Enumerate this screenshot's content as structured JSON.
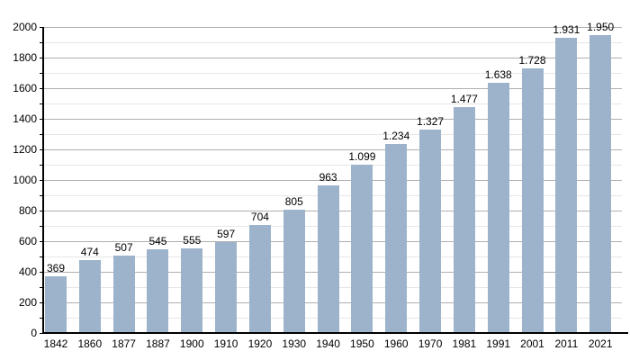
{
  "chart_data": {
    "type": "bar",
    "title": "",
    "xlabel": "",
    "ylabel": "",
    "categories": [
      "1842",
      "1860",
      "1877",
      "1887",
      "1900",
      "1910",
      "1920",
      "1930",
      "1940",
      "1950",
      "1960",
      "1970",
      "1981",
      "1991",
      "2001",
      "2011",
      "2021"
    ],
    "values": [
      369,
      474,
      507,
      545,
      555,
      597,
      704,
      805,
      963,
      1099,
      1234,
      1327,
      1477,
      1638,
      1728,
      1931,
      1950
    ],
    "value_labels": [
      "369",
      "474",
      "507",
      "545",
      "555",
      "597",
      "704",
      "805",
      "963",
      "1.099",
      "1.234",
      "1.327",
      "1.477",
      "1.638",
      "1.728",
      "1.931",
      "1.950"
    ],
    "ylim": [
      0,
      2000
    ],
    "y_major_step": 200,
    "y_minor_step": 100,
    "y_tick_labels": [
      "0",
      "200",
      "400",
      "600",
      "800",
      "1000",
      "1200",
      "1400",
      "1600",
      "1800",
      "2000"
    ],
    "grid": "major-and-minor horizontal",
    "legend": "none",
    "colors": {
      "bar_fill": "#9cb3cb",
      "major_grid": "#b0b0b0",
      "minor_grid": "#e6e6e6",
      "axis": "#000000",
      "text": "#000000",
      "background": "#ffffff"
    }
  }
}
